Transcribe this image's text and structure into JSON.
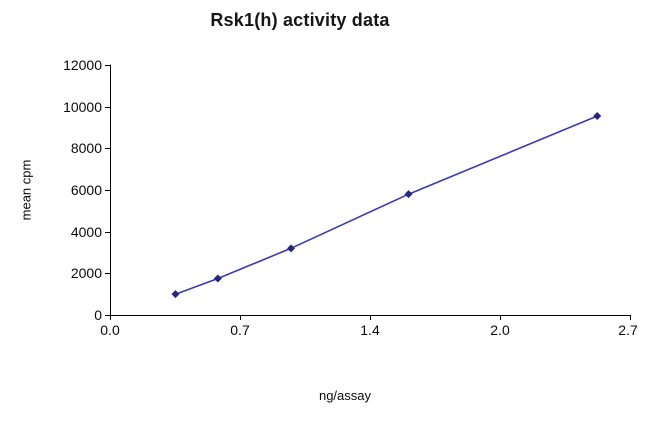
{
  "chart_data": {
    "type": "line",
    "title": "Rsk1(h) activity data",
    "xlabel": "ng/assay",
    "ylabel": "mean cpm",
    "xlim": [
      0,
      2.7
    ],
    "ylim": [
      0,
      12000
    ],
    "grid": false,
    "legend": "none",
    "background": "#ffffff",
    "axis_color": "#000000",
    "x_ticks": {
      "values": [
        0,
        0.675,
        1.35,
        2.025,
        2.7
      ],
      "labels": [
        "0.0",
        "0.7",
        "1.4",
        "2.0",
        "2.7"
      ]
    },
    "y_ticks": {
      "values": [
        0,
        2000,
        4000,
        6000,
        8000,
        10000,
        12000
      ],
      "labels": [
        "0",
        "2000",
        "4000",
        "6000",
        "8000",
        "10000",
        "12000"
      ]
    },
    "series": [
      {
        "name": "Rsk1(h) activity",
        "marker": "diamond",
        "line_color": "#3a3ab4",
        "marker_color": "#26267e",
        "x": [
          0.34,
          0.56,
          0.94,
          1.55,
          2.53
        ],
        "y": [
          1000,
          1750,
          3200,
          5800,
          9550
        ]
      }
    ]
  }
}
